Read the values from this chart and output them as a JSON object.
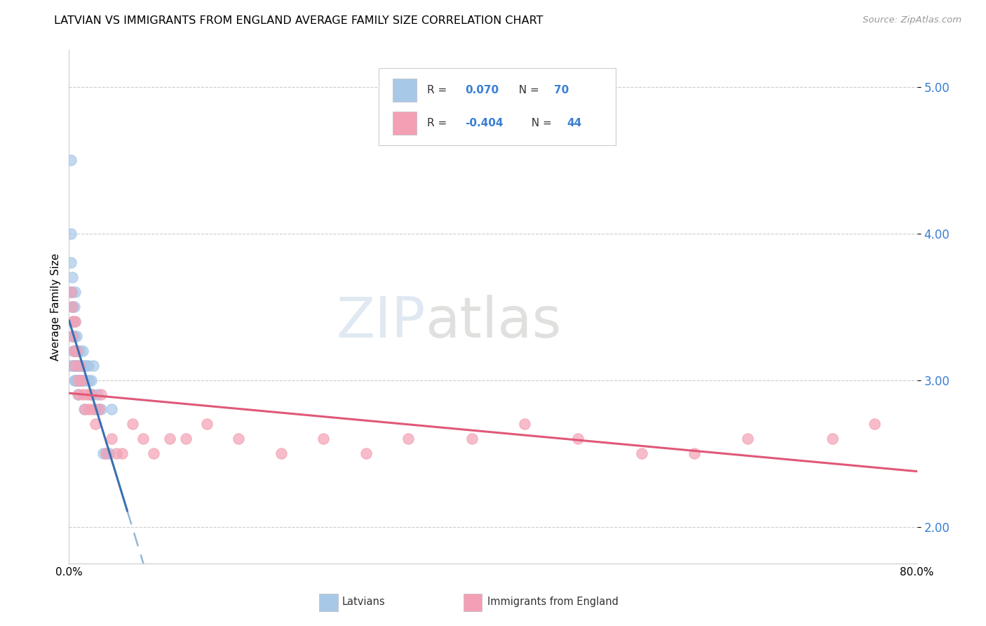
{
  "title": "LATVIAN VS IMMIGRANTS FROM ENGLAND AVERAGE FAMILY SIZE CORRELATION CHART",
  "source": "Source: ZipAtlas.com",
  "ylabel": "Average Family Size",
  "xlim": [
    0.0,
    0.8
  ],
  "ylim": [
    1.75,
    5.25
  ],
  "yticks": [
    2.0,
    3.0,
    4.0,
    5.0
  ],
  "watermark": "ZIPatlas",
  "latvian_color": "#a8c8e8",
  "england_color": "#f4a0b4",
  "latvian_line_color": "#3a6fb0",
  "england_line_color": "#e05878",
  "latvian_dashed_color": "#90b8d8",
  "blue_label_color": "#3a7fd4",
  "latvian_x": [
    0.001,
    0.002,
    0.002,
    0.003,
    0.003,
    0.003,
    0.004,
    0.004,
    0.004,
    0.005,
    0.005,
    0.005,
    0.005,
    0.005,
    0.006,
    0.006,
    0.006,
    0.006,
    0.007,
    0.007,
    0.007,
    0.008,
    0.008,
    0.008,
    0.008,
    0.009,
    0.009,
    0.01,
    0.01,
    0.01,
    0.011,
    0.011,
    0.012,
    0.012,
    0.013,
    0.013,
    0.014,
    0.014,
    0.015,
    0.016,
    0.017,
    0.018,
    0.019,
    0.02,
    0.021,
    0.022,
    0.023,
    0.025,
    0.027,
    0.028,
    0.03,
    0.032,
    0.035,
    0.038,
    0.04,
    0.002,
    0.003,
    0.004,
    0.005,
    0.006,
    0.007,
    0.008,
    0.009,
    0.002,
    0.003,
    0.004,
    0.005,
    0.006,
    0.007,
    0.008
  ],
  "latvian_y": [
    3.1,
    4.5,
    3.6,
    3.7,
    3.5,
    3.3,
    3.3,
    3.2,
    3.1,
    3.5,
    3.3,
    3.2,
    3.1,
    3.0,
    3.6,
    3.4,
    3.2,
    3.0,
    3.3,
    3.2,
    3.1,
    3.2,
    3.1,
    3.0,
    2.9,
    3.1,
    3.0,
    3.2,
    3.1,
    3.0,
    3.1,
    3.0,
    3.1,
    3.0,
    3.2,
    3.0,
    3.1,
    2.8,
    3.0,
    3.1,
    3.0,
    3.1,
    3.0,
    2.9,
    3.0,
    2.9,
    3.1,
    2.8,
    2.9,
    2.8,
    2.8,
    2.5,
    2.5,
    2.5,
    2.8,
    3.8,
    3.6,
    3.4,
    3.3,
    3.2,
    3.1,
    3.1,
    3.0,
    4.0,
    3.5,
    3.1,
    3.1,
    3.0,
    3.0,
    3.0
  ],
  "england_x": [
    0.002,
    0.003,
    0.003,
    0.004,
    0.005,
    0.005,
    0.006,
    0.007,
    0.008,
    0.009,
    0.01,
    0.012,
    0.013,
    0.015,
    0.017,
    0.019,
    0.021,
    0.023,
    0.025,
    0.028,
    0.03,
    0.035,
    0.04,
    0.045,
    0.05,
    0.06,
    0.07,
    0.08,
    0.095,
    0.11,
    0.13,
    0.16,
    0.2,
    0.24,
    0.28,
    0.32,
    0.38,
    0.43,
    0.48,
    0.54,
    0.59,
    0.64,
    0.72,
    0.76
  ],
  "england_y": [
    3.6,
    3.5,
    3.3,
    3.4,
    3.2,
    3.1,
    3.4,
    3.2,
    3.0,
    2.9,
    3.1,
    3.0,
    2.9,
    2.8,
    2.9,
    2.8,
    2.9,
    2.8,
    2.7,
    2.8,
    2.9,
    2.5,
    2.6,
    2.5,
    2.5,
    2.7,
    2.6,
    2.5,
    2.6,
    2.6,
    2.7,
    2.6,
    2.5,
    2.6,
    2.5,
    2.6,
    2.6,
    2.7,
    2.6,
    2.5,
    2.5,
    2.6,
    2.6,
    2.7
  ]
}
